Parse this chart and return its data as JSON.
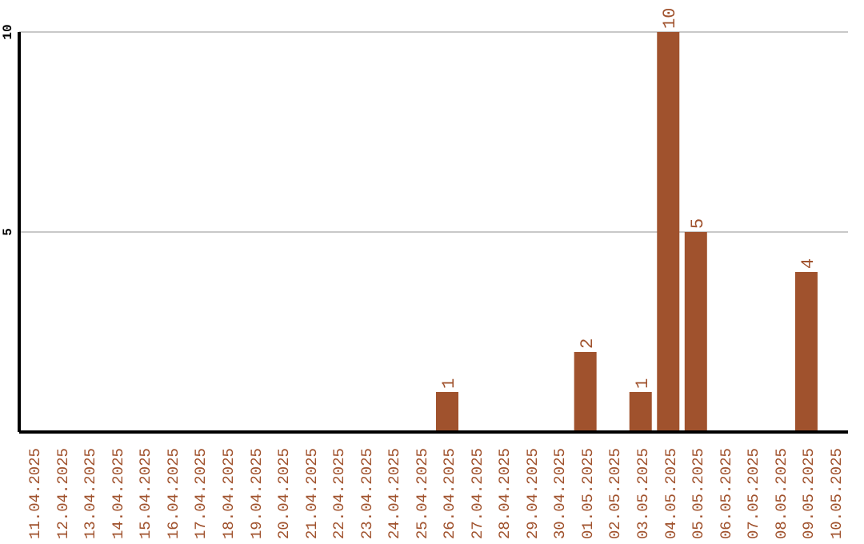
{
  "chart_data": {
    "type": "bar",
    "categories": [
      "11.04.2025",
      "12.04.2025",
      "13.04.2025",
      "14.04.2025",
      "15.04.2025",
      "16.04.2025",
      "17.04.2025",
      "18.04.2025",
      "19.04.2025",
      "20.04.2025",
      "21.04.2025",
      "22.04.2025",
      "23.04.2025",
      "24.04.2025",
      "25.04.2025",
      "26.04.2025",
      "27.04.2025",
      "28.04.2025",
      "29.04.2025",
      "30.04.2025",
      "01.05.2025",
      "02.05.2025",
      "03.05.2025",
      "04.05.2025",
      "05.05.2025",
      "06.05.2025",
      "07.05.2025",
      "08.05.2025",
      "09.05.2025",
      "10.05.2025"
    ],
    "values": [
      null,
      null,
      null,
      null,
      null,
      null,
      null,
      null,
      null,
      null,
      null,
      null,
      null,
      null,
      null,
      1,
      null,
      null,
      null,
      null,
      2,
      null,
      1,
      10,
      5,
      null,
      null,
      null,
      4,
      null
    ],
    "color": "#a0522d",
    "ylim": [
      0,
      10
    ],
    "yticks": [
      5,
      10
    ],
    "grid": "y",
    "data_labels": true
  }
}
